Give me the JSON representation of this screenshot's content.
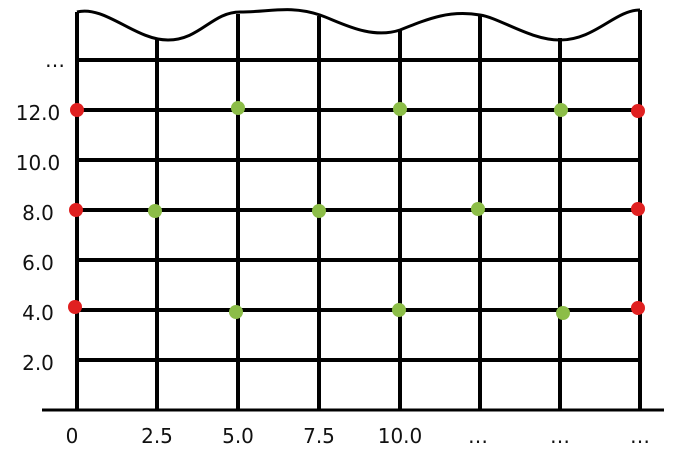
{
  "y_tick_labels": [
    "…",
    "12.0",
    "10.0",
    "8.0",
    "6.0",
    "4.0",
    "2.0"
  ],
  "x_tick_labels": [
    "0",
    "2.5",
    "5.0",
    "7.5",
    "10.0",
    "…",
    "…",
    "…"
  ],
  "colors": {
    "line": "#000000",
    "edge_dot": "#e02020",
    "inner_dot": "#8cbd48"
  },
  "rows": [
    {
      "y": 12.0,
      "red_at": [
        "0",
        "…"
      ],
      "green_at": [
        "5.0",
        "10.0",
        "…"
      ]
    },
    {
      "y": 8.0,
      "red_at": [
        "0",
        "…"
      ],
      "green_at": [
        "2.5",
        "7.5",
        "…"
      ]
    },
    {
      "y": 4.0,
      "red_at": [
        "0",
        "…"
      ],
      "green_at": [
        "5.0",
        "10.0",
        "…"
      ]
    }
  ]
}
